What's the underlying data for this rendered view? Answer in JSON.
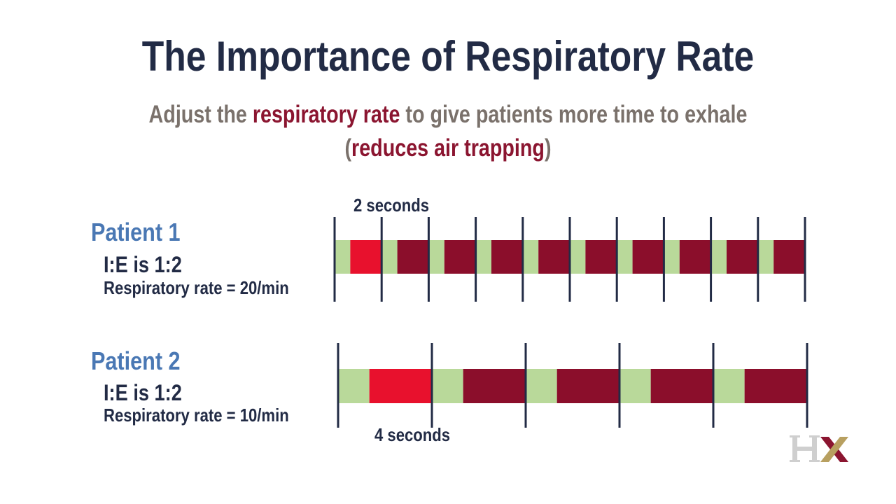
{
  "title": "The Importance of Respiratory Rate",
  "subtitle": {
    "line1_before": "Adjust the ",
    "line1_highlight": "respiratory rate",
    "line1_after": " to give patients more time to exhale",
    "line2_open": "(",
    "line2_highlight": "reduces air trapping",
    "line2_close": ")"
  },
  "colors": {
    "inhale": "#b9d99a",
    "exhale": "#8b0e2b",
    "highlight_exhale": "#e8112d",
    "divider": "#222b45",
    "title": "#222b45",
    "patient_label": "#4a78b4",
    "subtitle_gray": "#7a716b",
    "subtitle_highlight": "#8b1530"
  },
  "patients": [
    {
      "name": "Patient 1",
      "ie_ratio": "I:E is 1:2",
      "respiratory_rate": "Respiratory rate = 20/min",
      "breath_duration_label": "2 seconds",
      "breath_duration_s": 2,
      "breaths_shown": 10,
      "inhale_fraction": 0.3333,
      "highlighted_breath": 1
    },
    {
      "name": "Patient 2",
      "ie_ratio": "I:E is 1:2",
      "respiratory_rate": "Respiratory rate = 10/min",
      "breath_duration_label": "4 seconds",
      "breath_duration_s": 4,
      "breaths_shown": 5,
      "inhale_fraction": 0.3333,
      "highlighted_breath": 1
    }
  ],
  "logo": {
    "text": "HX",
    "letter1_color": "#cfcfcf",
    "letter2_color": "#8b1530",
    "accent_color": "#b8a060"
  }
}
